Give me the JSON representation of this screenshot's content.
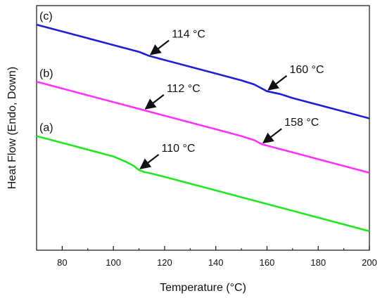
{
  "chart_data": {
    "type": "line",
    "xlabel": "Temperature (°C)",
    "ylabel": "Heat Flow (Endo, Down)",
    "xlim": [
      70,
      200
    ],
    "xticks": [
      80,
      100,
      120,
      140,
      160,
      180,
      200
    ],
    "grid": false,
    "series": [
      {
        "name": "(a)",
        "color": "#22e622",
        "x": [
          70,
          80,
          90,
          100,
          105,
          108,
          110,
          112,
          115,
          120,
          130,
          140,
          150,
          160,
          170,
          180,
          190,
          200
        ],
        "y": [
          4.2,
          3.95,
          3.7,
          3.45,
          3.25,
          3.1,
          2.95,
          2.88,
          2.82,
          2.7,
          2.45,
          2.2,
          1.95,
          1.7,
          1.45,
          1.2,
          0.95,
          0.7
        ]
      },
      {
        "name": "(b)",
        "color": "#ff33ff",
        "x": [
          70,
          80,
          90,
          100,
          110,
          112,
          120,
          130,
          140,
          150,
          155,
          158,
          162,
          170,
          180,
          190,
          200
        ],
        "y": [
          6.2,
          5.95,
          5.7,
          5.45,
          5.2,
          5.15,
          4.95,
          4.7,
          4.45,
          4.2,
          4.05,
          3.9,
          3.8,
          3.6,
          3.35,
          3.1,
          2.85
        ]
      },
      {
        "name": "(c)",
        "color": "#1f1fd6",
        "x": [
          70,
          80,
          90,
          100,
          110,
          114,
          120,
          130,
          140,
          150,
          155,
          160,
          165,
          170,
          180,
          190,
          200
        ],
        "y": [
          8.3,
          8.05,
          7.8,
          7.55,
          7.3,
          7.15,
          7.0,
          6.75,
          6.5,
          6.25,
          6.1,
          5.85,
          5.75,
          5.6,
          5.35,
          5.1,
          4.85
        ]
      }
    ],
    "annotations": [
      {
        "text": "110 °C",
        "series": "(a)",
        "x": 110
      },
      {
        "text": "112 °C",
        "series": "(b)",
        "x": 112
      },
      {
        "text": "158 °C",
        "series": "(b)",
        "x": 158
      },
      {
        "text": "114 °C",
        "series": "(c)",
        "x": 114
      },
      {
        "text": "160 °C",
        "series": "(c)",
        "x": 160
      }
    ]
  }
}
